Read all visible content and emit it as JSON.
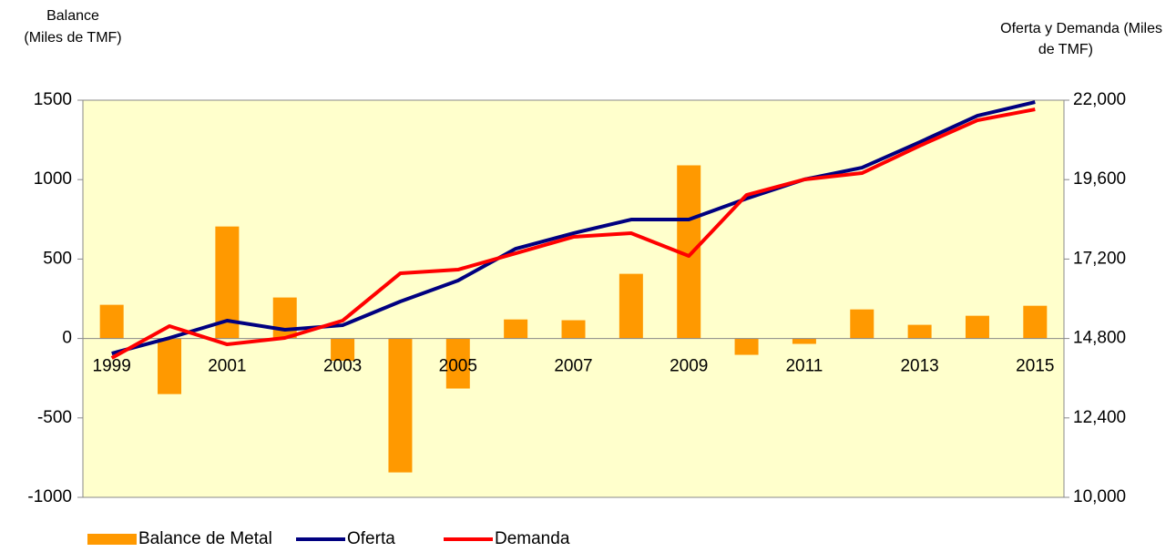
{
  "chart_data": {
    "type": "bar-line",
    "ylabel": [
      "Balance",
      "(Miles de TMF)"
    ],
    "y2label": [
      "Oferta y Demanda (Miles",
      "de TMF)"
    ],
    "categories": [
      "1999",
      null,
      "2001",
      null,
      "2003",
      null,
      "2005",
      null,
      "2007",
      null,
      "2009",
      null,
      "2011",
      null,
      "2013",
      null,
      "2015"
    ],
    "series": [
      {
        "name": "Balance de Metal",
        "type": "bar",
        "axis": "y",
        "color": "#ff9900",
        "values": [
          212,
          -350,
          705,
          258,
          -140,
          -843,
          -315,
          120,
          115,
          407,
          1090,
          -103,
          -34,
          183,
          86,
          143,
          206
        ]
      },
      {
        "name": "Oferta",
        "type": "line",
        "axis": "y2",
        "color": "#000080",
        "values": [
          14348,
          14816,
          15339,
          15064,
          15200,
          15917,
          16550,
          17513,
          17981,
          18394,
          18394,
          19027,
          19605,
          19962,
          20733,
          21531,
          21944
        ]
      },
      {
        "name": "Demanda",
        "type": "line",
        "axis": "y2",
        "color": "#ff0000",
        "values": [
          14211,
          15174,
          14623,
          14816,
          15339,
          16770,
          16880,
          17375,
          17871,
          17981,
          17293,
          19137,
          19605,
          19797,
          20623,
          21393,
          21724
        ]
      }
    ],
    "ylim": [
      -1000,
      1500
    ],
    "yticks": [
      1500,
      1000,
      500,
      0,
      -500,
      -1000
    ],
    "y2lim": [
      10000,
      22000
    ],
    "y2ticks": [
      {
        "value": 22000,
        "label": "22,000"
      },
      {
        "value": 19600,
        "label": "19,600"
      },
      {
        "value": 17200,
        "label": "17,200"
      },
      {
        "value": 14800,
        "label": "14,800"
      },
      {
        "value": 12400,
        "label": "12,400"
      },
      {
        "value": 10000,
        "label": "10,000"
      }
    ],
    "plot_background": "#ffffcc"
  }
}
